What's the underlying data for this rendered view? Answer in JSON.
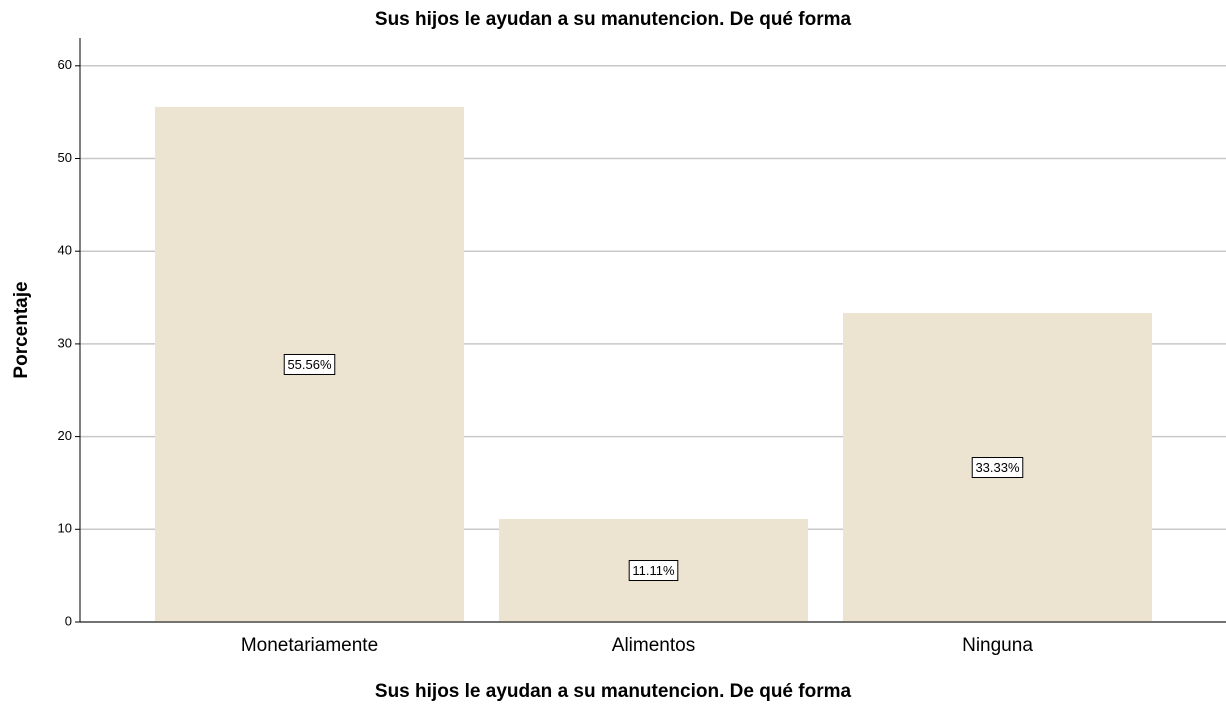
{
  "chart_data": {
    "type": "bar",
    "title": "Sus hijos le ayudan a su manutencion. De qué forma",
    "x_label": "Sus hijos le ayudan a su manutencion. De qué forma",
    "y_label": "Porcentaje",
    "categories": [
      "Monetariamente",
      "Alimentos",
      "Ninguna"
    ],
    "values": [
      55.56,
      11.11,
      33.33
    ],
    "value_labels": [
      "55.56%",
      "11.11%",
      "33.33%"
    ],
    "color": "#ece4d0",
    "ylim": [
      0,
      63
    ],
    "yticks": [
      0,
      10,
      20,
      30,
      40,
      50,
      60
    ],
    "grid": true
  }
}
